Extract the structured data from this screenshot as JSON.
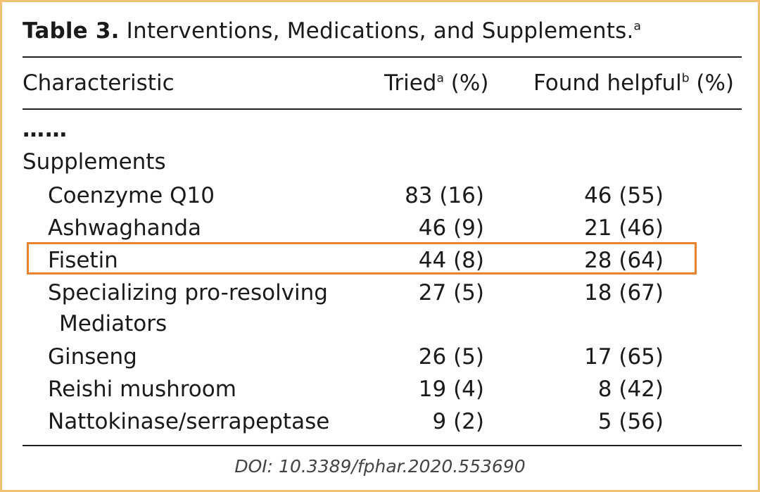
{
  "table": {
    "label": "Table 3.",
    "title": "Interventions, Medications, and Supplements.",
    "title_sup": "a",
    "headers": {
      "characteristic": "Characteristic",
      "tried": "Tried",
      "tried_sup": "a",
      "tried_unit": "(%)",
      "helpful": "Found helpful",
      "helpful_sup": "b",
      "helpful_unit": "(%)"
    },
    "ellipsis": "……",
    "section": "Supplements",
    "rows": [
      {
        "name": "Coenzyme Q10",
        "tried": "83 (16)",
        "helpful": "46 (55)"
      },
      {
        "name": "Ashwaghanda",
        "tried": "46 (9)",
        "helpful": "21 (46)"
      },
      {
        "name": "Fisetin",
        "tried": "44 (8)",
        "helpful": "28 (64)",
        "highlighted": true
      },
      {
        "name": "Specializing pro-resolving",
        "name_cont": "Mediators",
        "tried": "27 (5)",
        "helpful": "18 (67)"
      },
      {
        "name": "Ginseng",
        "tried": "26 (5)",
        "helpful": "17 (65)"
      },
      {
        "name": "Reishi mushroom",
        "tried": "19 (4)",
        "helpful": "8 (42)"
      },
      {
        "name": "Nattokinase/serrapeptase",
        "tried": "9 (2)",
        "helpful": "5 (56)"
      }
    ]
  },
  "colors": {
    "frame": "#f0c274",
    "highlight": "#e8822e"
  },
  "doi": "DOI: 10.3389/fphar.2020.553690"
}
